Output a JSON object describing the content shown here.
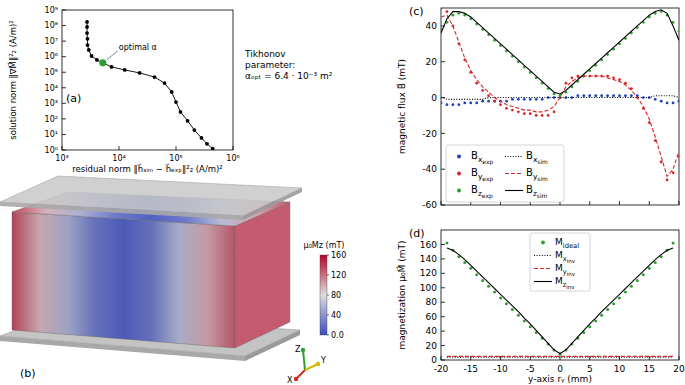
{
  "chart_data": [
    {
      "type": "line",
      "title": "(a)",
      "x_label": "residual norm ‖h⃗ₛᵢₘ − h⃗ₑₓₚ‖²₂ (A/m)²",
      "y_label": "solution norm ‖∇M⃗‖²₂ (A/m)²",
      "log": true,
      "xlim": [
        1000,
        1000000
      ],
      "ylim": [
        1,
        1000000000
      ],
      "xticks": [
        {
          "value": 1000,
          "label": "10³"
        },
        {
          "value": 10000,
          "label": "10⁴"
        },
        {
          "value": 100000,
          "label": "10⁵"
        },
        {
          "value": 1000000,
          "label": "10⁶"
        }
      ],
      "yticks": [
        {
          "value": 1,
          "label": "10⁰"
        },
        {
          "value": 10,
          "label": "10¹"
        },
        {
          "value": 100,
          "label": "10²"
        },
        {
          "value": 1000,
          "label": "10³"
        },
        {
          "value": 10000,
          "label": "10⁴"
        },
        {
          "value": 100000,
          "label": "10⁵"
        },
        {
          "value": 1000000,
          "label": "10⁶"
        },
        {
          "value": 10000000,
          "label": "10⁷"
        },
        {
          "value": 100000000,
          "label": "10⁸"
        },
        {
          "value": 1000000000,
          "label": "10⁹"
        }
      ],
      "series": [
        {
          "color": "#000000",
          "marker": "circle",
          "line_style": "solid",
          "x": [
            2750,
            2750,
            2750,
            2800,
            2800,
            2950,
            3300,
            4100,
            5200,
            7400,
            12600,
            23000,
            42000,
            63000,
            84000,
            100000,
            120000,
            160000,
            210000,
            280000,
            350000,
            440000
          ],
          "values": [
            170000000,
            81000000,
            33000000,
            14000000,
            5600000,
            2700000,
            1100000,
            620000,
            400000,
            220000,
            140000,
            90000,
            49000,
            20000,
            5400,
            1200,
            280,
            74,
            19,
            6,
            2.5,
            1.2
          ]
        },
        {
          "color": "#2ca02c",
          "marker": "circle",
          "line_style": "none",
          "x": [
            5200
          ],
          "values": [
            400000
          ]
        }
      ],
      "annotations": [
        {
          "text": "optimal α",
          "x": 5200,
          "y": 400000
        },
        {
          "text": "Tikhonov"
        },
        {
          "text": "parameter:"
        },
        {
          "text": "αₒₚₜ = 6.4 · 10⁻³ m²"
        }
      ]
    },
    {
      "type": "surface",
      "title": "(b)",
      "values": [
        135,
        95,
        55,
        25,
        12,
        25,
        60,
        100,
        128
      ],
      "colorbar": {
        "label": "μ₀Mz (mT)",
        "range": [
          0,
          160
        ],
        "ticks": [
          160,
          120,
          80,
          40,
          {
            "value": 0,
            "label": "0.0"
          }
        ]
      },
      "annotations": [
        {
          "text": "Z"
        },
        {
          "text": "Y"
        },
        {
          "text": "X"
        }
      ]
    },
    {
      "type": "line",
      "title": "(c)",
      "y_label": "magnetic flux B⃗ (mT)",
      "xlim": [
        -20,
        20
      ],
      "ylim": [
        -60,
        50
      ],
      "xticks": [
        -20,
        -15,
        -10,
        -5,
        0,
        5,
        10,
        15,
        20
      ],
      "yticks": [
        -60,
        -40,
        -20,
        0,
        20,
        40
      ],
      "tick_labels": "y",
      "legend": "lower left",
      "x": [
        -20,
        -19,
        -18,
        -17,
        -16,
        -15,
        -14,
        -13,
        -12,
        -11,
        -10,
        -9,
        -8,
        -7,
        -6,
        -5,
        -4,
        -3,
        -2,
        -1,
        0,
        1,
        2,
        3,
        4,
        5,
        6,
        7,
        8,
        9,
        10,
        11,
        12,
        13,
        14,
        15,
        16,
        17,
        18,
        19,
        20
      ],
      "series": [
        {
          "name": "Bxexp",
          "color": "#1f3fbf",
          "marker": "circle",
          "line_style": "none",
          "values": [
            -3,
            -4,
            -4,
            -4,
            -3,
            -3,
            -3,
            -2,
            -2,
            -2,
            -2,
            -2,
            -1,
            -1,
            -1,
            -1,
            -1,
            -1,
            0,
            0,
            0,
            0,
            0,
            1,
            1,
            1,
            1,
            1,
            1,
            1,
            1,
            1,
            1,
            1,
            0,
            0,
            -1,
            -2,
            -3,
            -3,
            -2
          ]
        },
        {
          "name": "Byexp",
          "color": "#d62728",
          "marker": "circle",
          "line_style": "none",
          "values": [
            50,
            48,
            40,
            30,
            21,
            14,
            8,
            4,
            1,
            -2,
            -4,
            -6,
            -7,
            -8,
            -9,
            -9,
            -10,
            -10,
            -10,
            -8,
            0,
            8,
            11,
            12,
            12,
            12,
            12,
            12,
            12,
            11,
            10,
            8,
            5,
            0,
            -6,
            -14,
            -24,
            -36,
            -46,
            -42,
            -33
          ]
        },
        {
          "name": "Bzexp",
          "color": "#2ca02c",
          "marker": "circle",
          "line_style": "none",
          "values": [
            38,
            42,
            46,
            47,
            46,
            44,
            41,
            38,
            35,
            32,
            29,
            26,
            23,
            20,
            17,
            14,
            11,
            8,
            5,
            2,
            1,
            3,
            6,
            9,
            12,
            15,
            18,
            21,
            24,
            27,
            30,
            33,
            36,
            39,
            42,
            45,
            47,
            48,
            46,
            42,
            37
          ]
        },
        {
          "name": "Bxsim",
          "color": "#000000",
          "marker": "none",
          "line_style": "dotted",
          "values": [
            0,
            -1,
            -1,
            -1,
            -1,
            -1,
            -1,
            -1,
            0,
            0,
            0,
            0,
            0,
            0,
            0,
            0,
            0,
            0,
            0,
            0,
            0,
            0,
            0,
            0,
            0,
            0,
            0,
            0,
            0,
            0,
            0,
            0,
            0,
            0,
            0,
            0,
            1,
            1,
            1,
            1,
            0
          ]
        },
        {
          "name": "Bysim",
          "color": "#d62728",
          "marker": "none",
          "line_style": "dashed",
          "values": [
            45,
            46,
            40,
            31,
            22,
            15,
            10,
            6,
            3,
            0,
            -2,
            -4,
            -5,
            -6,
            -7,
            -7,
            -8,
            -8,
            -7,
            -5,
            0,
            6,
            9,
            11,
            12,
            12,
            12,
            12,
            11,
            10,
            9,
            7,
            4,
            0,
            -5,
            -12,
            -22,
            -33,
            -44,
            -40,
            -30
          ]
        },
        {
          "name": "Bzsim",
          "color": "#000000",
          "marker": "none",
          "line_style": "solid",
          "values": [
            36,
            44,
            48,
            48,
            47,
            45,
            42,
            39,
            36,
            33,
            30,
            27,
            24,
            21,
            18,
            15,
            12,
            9,
            6,
            3,
            2,
            4,
            7,
            10,
            13,
            16,
            19,
            22,
            25,
            28,
            31,
            34,
            37,
            40,
            43,
            46,
            48,
            49,
            47,
            40,
            32
          ]
        }
      ]
    },
    {
      "type": "line",
      "title": "(d)",
      "x_label": "y-axis rᵧ (mm)",
      "y_label": "magnetization μ₀M⃗ (mT)",
      "xlim": [
        -20,
        20
      ],
      "ylim": [
        0,
        180
      ],
      "xticks": [
        -20,
        -15,
        -10,
        -5,
        0,
        5,
        10,
        15,
        20
      ],
      "yticks": [
        0,
        20,
        40,
        60,
        80,
        100,
        120,
        140,
        160
      ],
      "legend": "upper center",
      "x": [
        -19,
        -18,
        -17,
        -16,
        -15,
        -14,
        -13,
        -12,
        -11,
        -10,
        -9,
        -8,
        -7,
        -6,
        -5,
        -4,
        -3,
        -2,
        -1,
        0,
        1,
        2,
        3,
        4,
        5,
        6,
        7,
        8,
        9,
        10,
        11,
        12,
        13,
        14,
        15,
        16,
        17,
        18,
        19
      ],
      "series": [
        {
          "name": "Mideal",
          "color": "#2ca02c",
          "marker": "circle",
          "line_style": "none",
          "values": [
            162,
            152,
            143,
            135,
            127,
            118,
            110,
            102,
            94,
            86,
            78,
            70,
            62,
            54,
            46,
            38,
            30,
            22,
            14,
            8,
            14,
            22,
            30,
            38,
            46,
            54,
            62,
            70,
            78,
            86,
            94,
            102,
            110,
            118,
            127,
            135,
            143,
            152,
            162
          ]
        },
        {
          "name": "Mxinv",
          "color": "#000000",
          "marker": "none",
          "line_style": "dotted",
          "values": [
            4,
            4,
            4,
            4,
            4,
            4,
            4,
            4,
            4,
            4,
            4,
            4,
            4,
            4,
            4,
            4,
            4,
            4,
            4,
            4,
            4,
            4,
            4,
            4,
            4,
            4,
            4,
            4,
            4,
            4,
            4,
            4,
            4,
            4,
            4,
            4,
            4,
            4,
            4
          ]
        },
        {
          "name": "Myinv",
          "color": "#d62728",
          "marker": "none",
          "line_style": "dashed",
          "values": [
            5,
            5,
            5,
            5,
            5,
            5,
            5,
            5,
            5,
            5,
            5,
            5,
            5,
            5,
            5,
            5,
            5,
            5,
            5,
            5,
            5,
            5,
            5,
            5,
            5,
            5,
            5,
            5,
            5,
            5,
            5,
            5,
            5,
            5,
            5,
            5,
            5,
            5,
            5
          ]
        },
        {
          "name": "Mzinv",
          "color": "#000000",
          "marker": "none",
          "line_style": "solid",
          "values": [
            155,
            152,
            146,
            139,
            131,
            123,
            115,
            107,
            99,
            91,
            83,
            75,
            67,
            58,
            50,
            41,
            32,
            23,
            14,
            9,
            14,
            23,
            32,
            41,
            50,
            58,
            67,
            75,
            83,
            91,
            99,
            107,
            115,
            123,
            131,
            139,
            146,
            152,
            155
          ]
        }
      ]
    }
  ]
}
